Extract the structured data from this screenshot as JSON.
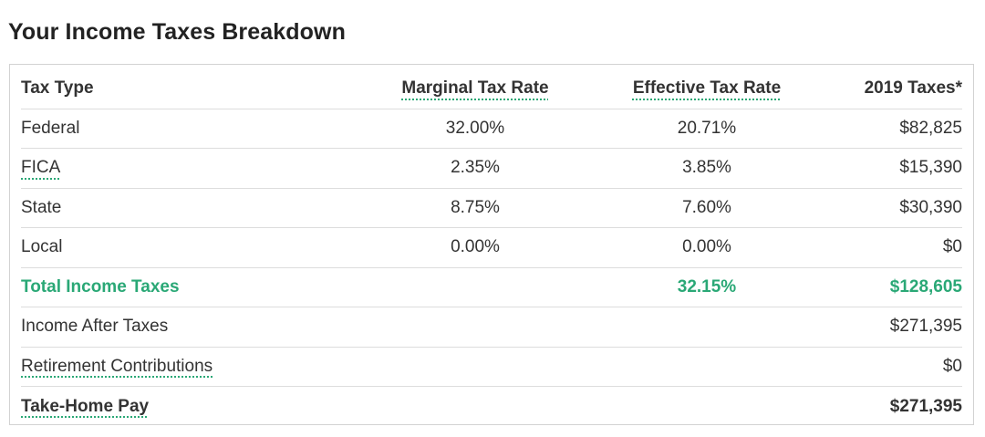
{
  "page_title": "Your Income Taxes Breakdown",
  "table": {
    "headers": [
      "Tax Type",
      "Marginal Tax Rate",
      "Effective Tax Rate",
      "2019 Taxes*"
    ],
    "rows": [
      {
        "type": "Federal",
        "marginal": "32.00%",
        "effective": "20.71%",
        "taxes": "$82,825"
      },
      {
        "type": "FICA",
        "marginal": "2.35%",
        "effective": "3.85%",
        "taxes": "$15,390"
      },
      {
        "type": "State",
        "marginal": "8.75%",
        "effective": "7.60%",
        "taxes": "$30,390"
      },
      {
        "type": "Local",
        "marginal": "0.00%",
        "effective": "0.00%",
        "taxes": "$0"
      }
    ],
    "total": {
      "label": "Total Income Taxes",
      "effective": "32.15%",
      "taxes": "$128,605"
    },
    "income_after_taxes": {
      "label": "Income After Taxes",
      "value": "$271,395"
    },
    "retirement_contributions": {
      "label": "Retirement Contributions",
      "value": "$0"
    },
    "take_home_pay": {
      "label": "Take-Home Pay",
      "value": "$271,395"
    }
  },
  "colors": {
    "accent": "#2aa876",
    "text": "#333333",
    "border": "#dddddd"
  }
}
